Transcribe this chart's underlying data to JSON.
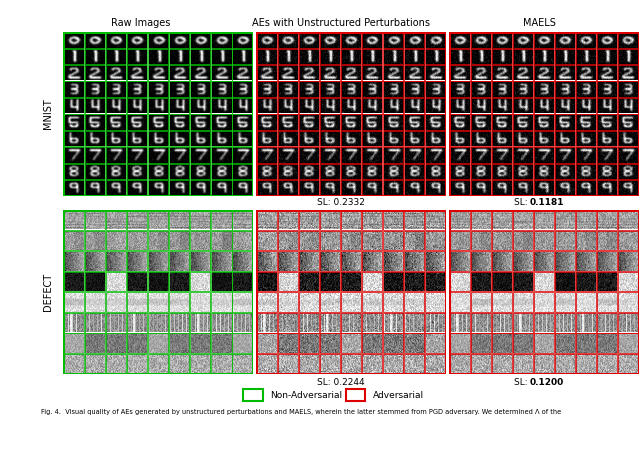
{
  "title_col1": "Raw Images",
  "title_col2": "AEs with Unstructured Perturbations",
  "title_col3": "MAELS",
  "label_row1": "MNIST",
  "label_row2": "DEFECT",
  "sl_col2_mnist": "SL: 0.2332",
  "sl_col3_mnist_prefix": "SL: ",
  "sl_col3_mnist_bold": "0.1181",
  "sl_col2_defect": "SL: 0.2244",
  "sl_col3_defect_prefix": "SL: ",
  "sl_col3_defect_bold": "0.1200",
  "legend_green": "Non-Adversarial",
  "legend_red": "Adversarial",
  "caption": "Fig. 4.  Visual quality of AEs generated by unstructured perturbations and MAELS, wherein the latter stemmed from PGD adversary. We determined Λ of the",
  "border_green": "#00bb00",
  "border_red": "#dd0000",
  "bg_color": "#ffffff",
  "mnist_rows": 10,
  "mnist_cols": 9,
  "defect_rows": 8,
  "defect_cols": 9,
  "fig_width": 6.4,
  "fig_height": 4.54,
  "fig_dpi": 100
}
